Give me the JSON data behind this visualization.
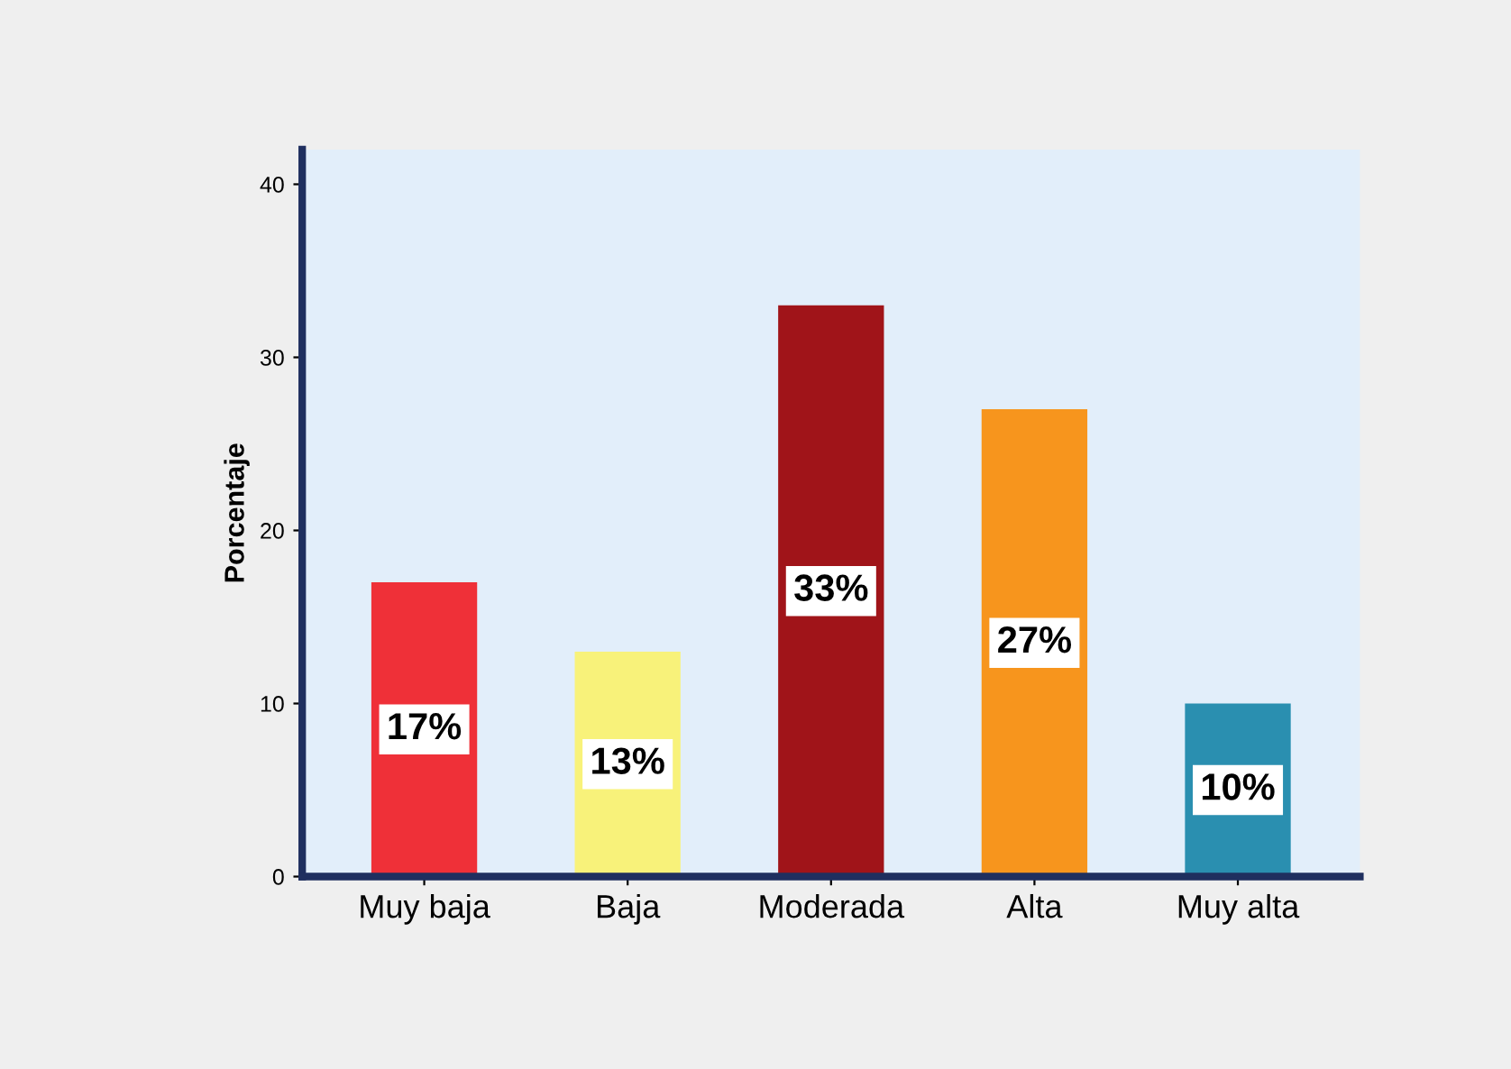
{
  "chart_data": {
    "type": "bar",
    "ylabel": "Porcentaje",
    "categories": [
      "Muy baja",
      "Baja",
      "Moderada",
      "Alta",
      "Muy alta"
    ],
    "values": [
      17,
      13,
      33,
      27,
      10
    ],
    "colors": [
      "#ef3038",
      "#f8f27a",
      "#a01419",
      "#f7951d",
      "#2a8fb0"
    ],
    "value_labels": [
      "17%",
      "13%",
      "33%",
      "27%",
      "10%"
    ],
    "ylim": [
      0,
      42
    ],
    "yticks": [
      0,
      10,
      20,
      30,
      40
    ],
    "grid": false
  }
}
